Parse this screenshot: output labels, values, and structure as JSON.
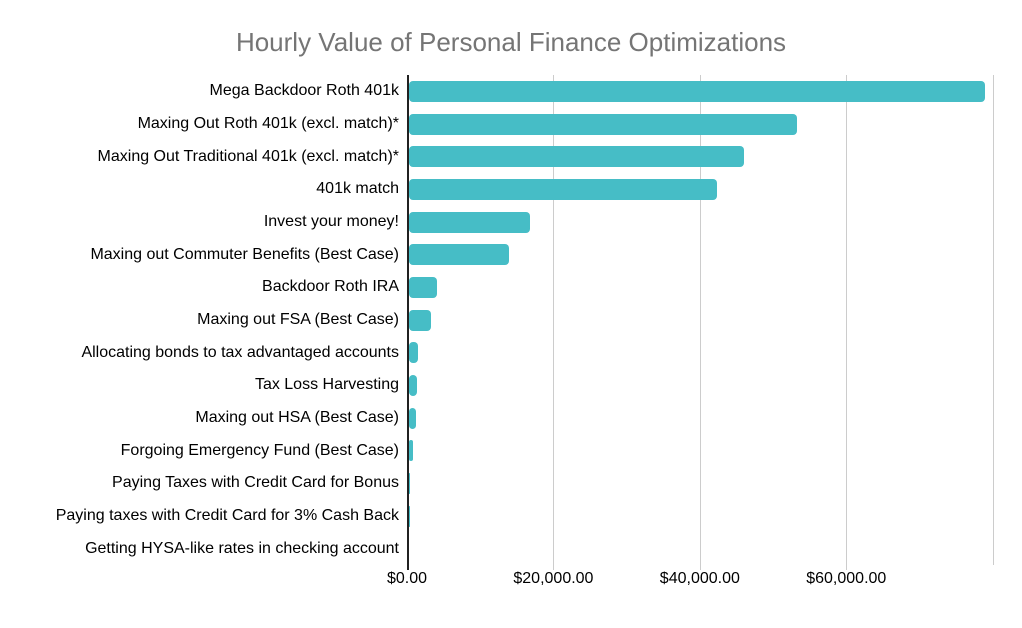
{
  "colors": {
    "bar": "#46bdc6",
    "title": "#757575",
    "label": "#000000",
    "gridline": "#cccccc",
    "axis": "#212121"
  },
  "chart_data": {
    "type": "bar",
    "orientation": "horizontal",
    "title": "Hourly Value of Personal Finance Optimizations",
    "xlabel": "",
    "ylabel": "",
    "xlim": [
      0,
      84000
    ],
    "grid": "vertical-only",
    "legend": "none",
    "categories": [
      "Mega Backdoor Roth 401k",
      "Maxing Out Roth 401k (excl. match)*",
      "Maxing Out Traditional 401k (excl. match)*",
      "401k match",
      "Invest your money!",
      "Maxing out Commuter Benefits (Best Case)",
      "Backdoor Roth IRA",
      "Maxing out FSA (Best Case)",
      "Allocating bonds to tax advantaged accounts",
      "Tax Loss Harvesting",
      "Maxing out HSA (Best Case)",
      "Forgoing Emergency Fund (Best Case)",
      "Paying Taxes with Credit Card for Bonus",
      "Paying taxes with Credit Card for 3% Cash Back",
      "Getting HYSA-like rates in checking account"
    ],
    "values": [
      79000,
      53200,
      46000,
      42400,
      16800,
      13900,
      4100,
      3300,
      1550,
      1330,
      1230,
      860,
      400,
      350,
      20
    ],
    "gridline_values": [
      0,
      20000,
      40000,
      60000,
      80000
    ],
    "x_ticks": [
      {
        "value": 0,
        "label": "$0.00"
      },
      {
        "value": 20000,
        "label": "$20,000.00"
      },
      {
        "value": 40000,
        "label": "$40,000.00"
      },
      {
        "value": 60000,
        "label": "$60,000.00"
      }
    ]
  }
}
